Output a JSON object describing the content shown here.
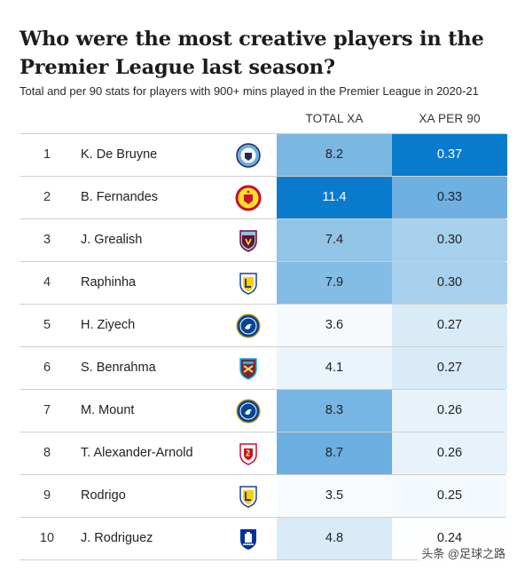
{
  "header": {
    "title": "Who were the most creative players in the Premier League last season?",
    "subtitle": "Total and per 90 stats for players with 900+ mins played in the Premier League in 2020-21",
    "columns": [
      "TOTAL XA",
      "XA PER 90"
    ]
  },
  "watermark": "头条 @足球之路",
  "colors": {
    "scale_low": "#ffffff",
    "scale_high": "#0a7bcc",
    "text_dark": "#222222",
    "text_light": "#ffffff"
  },
  "chart_data": {
    "type": "table",
    "title": "Who were the most creative players in the Premier League last season?",
    "subtitle": "Total and per 90 stats for players with 900+ mins played in the Premier League in 2020-21",
    "columns": [
      "TOTAL XA",
      "XA PER 90"
    ],
    "rows": [
      {
        "rank": "1",
        "player": "K. De Bruyne",
        "club_icon": "man-city-crest-icon",
        "total_xa": "8.2",
        "xa_per_90": "0.37"
      },
      {
        "rank": "2",
        "player": "B. Fernandes",
        "club_icon": "man-united-crest-icon",
        "total_xa": "11.4",
        "xa_per_90": "0.33"
      },
      {
        "rank": "3",
        "player": "J. Grealish",
        "club_icon": "aston-villa-crest-icon",
        "total_xa": "7.4",
        "xa_per_90": "0.30"
      },
      {
        "rank": "4",
        "player": "Raphinha",
        "club_icon": "leeds-crest-icon",
        "total_xa": "7.9",
        "xa_per_90": "0.30"
      },
      {
        "rank": "5",
        "player": "H. Ziyech",
        "club_icon": "chelsea-crest-icon",
        "total_xa": "3.6",
        "xa_per_90": "0.27"
      },
      {
        "rank": "6",
        "player": "S. Benrahma",
        "club_icon": "west-ham-crest-icon",
        "total_xa": "4.1",
        "xa_per_90": "0.27"
      },
      {
        "rank": "7",
        "player": "M. Mount",
        "club_icon": "chelsea-crest-icon",
        "total_xa": "8.3",
        "xa_per_90": "0.26"
      },
      {
        "rank": "8",
        "player": "T. Alexander-Arnold",
        "club_icon": "liverpool-crest-icon",
        "total_xa": "8.7",
        "xa_per_90": "0.26"
      },
      {
        "rank": "9",
        "player": "Rodrigo",
        "club_icon": "leeds-crest-icon",
        "total_xa": "3.5",
        "xa_per_90": "0.25"
      },
      {
        "rank": "10",
        "player": "J. Rodriguez",
        "club_icon": "everton-crest-icon",
        "total_xa": "4.8",
        "xa_per_90": "0.24"
      }
    ]
  }
}
